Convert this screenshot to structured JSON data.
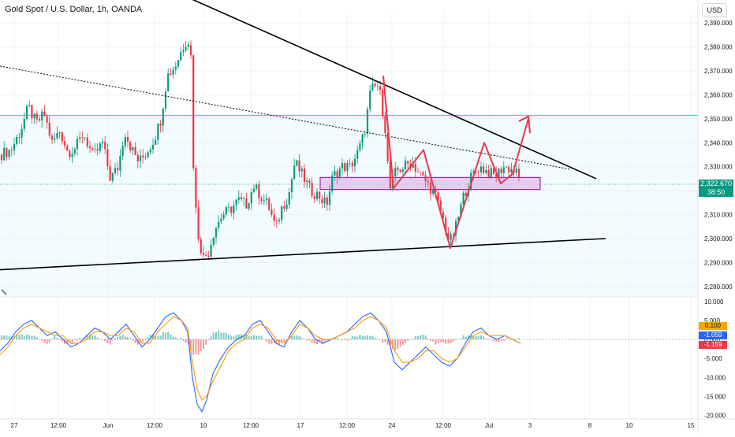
{
  "header": {
    "title": "Gold Spot / U.S. Dollar, 1h, OANDA",
    "currency": "USD"
  },
  "price_tag": {
    "price": "2,322.670",
    "countdown": "38:50",
    "color": "#089981"
  },
  "indicator_tags": [
    {
      "value": "0.100",
      "bg": "#f7a600",
      "fg": "#131722"
    },
    {
      "value": "-1.059",
      "bg": "#2962ff",
      "fg": "#ffffff"
    },
    {
      "value": "-1.159",
      "bg": "#f23645",
      "fg": "#ffffff"
    }
  ],
  "colors": {
    "up": "#089981",
    "down": "#f23645",
    "zone_fill": "#e1bee7",
    "zone_border": "#9c27b0",
    "pattern": "#e53950",
    "macd_line": "#2962ff",
    "signal_line": "#ff9800",
    "horizontal_line": "#26c6da"
  },
  "chart_data": [
    {
      "type": "candlestick",
      "title": "Gold Spot / U.S. Dollar, 1h, OANDA",
      "yaxis_ticks": [
        2280,
        2290,
        2300,
        2310,
        2320,
        2330,
        2340,
        2350,
        2360,
        2370,
        2380,
        2390
      ],
      "yaxis_tick_labels": [
        "2,280.000",
        "2,290.000",
        "2,300.000",
        "2,310.000",
        "2,320.000",
        "2,330.000",
        "2,340.000",
        "2,350.000",
        "2,360.000",
        "2,370.000",
        "2,380.000",
        "2,390.000"
      ],
      "ylim": [
        2276,
        2395
      ],
      "xaxis_labels": [
        "27",
        "12:00",
        "Jun",
        "12:00",
        "10",
        "12:00",
        "17",
        "12:00",
        "24",
        "12:00",
        "Jul",
        "3",
        "8",
        "10",
        "15"
      ],
      "grid": true,
      "last_price": 2322.67,
      "path_points": [
        [
          0,
          2335
        ],
        [
          14,
          2337
        ],
        [
          26,
          2345
        ],
        [
          36,
          2355
        ],
        [
          46,
          2348
        ],
        [
          56,
          2352
        ],
        [
          66,
          2340
        ],
        [
          76,
          2345
        ],
        [
          86,
          2336
        ],
        [
          96,
          2338
        ],
        [
          106,
          2344
        ],
        [
          118,
          2334
        ],
        [
          130,
          2340
        ],
        [
          140,
          2325
        ],
        [
          150,
          2330
        ],
        [
          158,
          2345
        ],
        [
          166,
          2338
        ],
        [
          176,
          2332
        ],
        [
          186,
          2336
        ],
        [
          196,
          2342
        ],
        [
          204,
          2350
        ],
        [
          212,
          2368
        ],
        [
          222,
          2372
        ],
        [
          232,
          2380
        ],
        [
          238,
          2384
        ],
        [
          242,
          2376
        ],
        [
          246,
          2320
        ],
        [
          252,
          2300
        ],
        [
          258,
          2292
        ],
        [
          264,
          2294
        ],
        [
          272,
          2304
        ],
        [
          282,
          2310
        ],
        [
          292,
          2312
        ],
        [
          302,
          2316
        ],
        [
          312,
          2314
        ],
        [
          322,
          2322
        ],
        [
          330,
          2318
        ],
        [
          340,
          2314
        ],
        [
          350,
          2304
        ],
        [
          356,
          2312
        ],
        [
          366,
          2318
        ],
        [
          374,
          2332
        ],
        [
          384,
          2326
        ],
        [
          394,
          2320
        ],
        [
          404,
          2318
        ],
        [
          414,
          2314
        ],
        [
          422,
          2326
        ],
        [
          434,
          2330
        ],
        [
          444,
          2330
        ],
        [
          454,
          2336
        ],
        [
          462,
          2344
        ],
        [
          470,
          2362
        ],
        [
          480,
          2364
        ],
        [
          488,
          2348
        ],
        [
          494,
          2320
        ],
        [
          502,
          2328
        ],
        [
          512,
          2330
        ],
        [
          522,
          2332
        ],
        [
          532,
          2327
        ],
        [
          542,
          2323
        ],
        [
          552,
          2318
        ],
        [
          562,
          2308
        ],
        [
          570,
          2298
        ],
        [
          578,
          2305
        ],
        [
          588,
          2318
        ],
        [
          598,
          2326
        ],
        [
          608,
          2330
        ],
        [
          618,
          2328
        ],
        [
          628,
          2326
        ],
        [
          638,
          2330
        ],
        [
          648,
          2329
        ],
        [
          656,
          2327
        ],
        [
          660,
          2323
        ]
      ],
      "horizontal_level": 2351.5,
      "zone": {
        "from": 2320.5,
        "to": 2325.5
      },
      "trendlines": [
        {
          "from": [
            236,
            2401
          ],
          "to": [
            756,
            2325
          ]
        },
        {
          "from": [
            0,
            2287
          ],
          "to": [
            768,
            2300
          ]
        },
        {
          "from": [
            0,
            2372
          ],
          "to": [
            722,
            2329
          ],
          "dotted": true
        }
      ],
      "pattern_path": [
        [
          486,
          2368
        ],
        [
          499,
          2321
        ],
        [
          537,
          2337
        ],
        [
          571,
          2296
        ],
        [
          614,
          2340
        ],
        [
          635,
          2323
        ],
        [
          650,
          2327
        ],
        [
          670,
          2350
        ]
      ],
      "arrowhead": [
        [
          658,
          2349
        ],
        [
          670,
          2351
        ],
        [
          672,
          2344
        ]
      ]
    },
    {
      "type": "line",
      "title": "",
      "yaxis_ticks": [
        10,
        5,
        0,
        -5,
        -10,
        -15,
        -20
      ],
      "yaxis_tick_labels": [
        "10.000",
        "5.000",
        "0.000",
        "-5.000",
        "-10.000",
        "-15.000",
        "-20.000"
      ],
      "ylim": [
        -20.5,
        11
      ],
      "series": [
        {
          "color": "#2962ff",
          "x": [
            0,
            10,
            20,
            30,
            40,
            50,
            60,
            70,
            80,
            90,
            100,
            110,
            120,
            130,
            140,
            150,
            160,
            170,
            180,
            190,
            200,
            210,
            220,
            230,
            238,
            244,
            250,
            256,
            262,
            270,
            280,
            290,
            300,
            310,
            320,
            330,
            340,
            350,
            360,
            370,
            380,
            390,
            400,
            410,
            420,
            430,
            440,
            450,
            460,
            470,
            480,
            490,
            500,
            510,
            520,
            530,
            540,
            550,
            560,
            570,
            580,
            590,
            600,
            610,
            620,
            630,
            640,
            650,
            660
          ],
          "y": [
            -3,
            -1,
            2,
            4,
            5,
            3,
            1,
            2,
            0,
            -2,
            -1,
            1,
            3,
            2,
            0,
            2,
            4,
            1,
            -2,
            0,
            3,
            6,
            7,
            5,
            2,
            -10,
            -17,
            -19,
            -16,
            -9,
            -5,
            -2,
            0,
            1,
            4,
            5,
            2,
            -1,
            -2,
            2,
            5,
            3,
            0,
            -1,
            0,
            1,
            2,
            4,
            6,
            7,
            5,
            2,
            -6,
            -8,
            -6,
            -4,
            -2,
            -4,
            -6,
            -7,
            -5,
            -1,
            2,
            3,
            1,
            0,
            1,
            0,
            -1
          ]
        },
        {
          "color": "#ff9800",
          "x": [
            0,
            10,
            20,
            30,
            40,
            50,
            60,
            70,
            80,
            90,
            100,
            110,
            120,
            130,
            140,
            150,
            160,
            170,
            180,
            190,
            200,
            210,
            220,
            230,
            238,
            244,
            250,
            256,
            262,
            270,
            280,
            290,
            300,
            310,
            320,
            330,
            340,
            350,
            360,
            370,
            380,
            390,
            400,
            410,
            420,
            430,
            440,
            450,
            460,
            470,
            480,
            490,
            500,
            510,
            520,
            530,
            540,
            550,
            560,
            570,
            580,
            590,
            600,
            610,
            620,
            630,
            640,
            650,
            660
          ],
          "y": [
            -4,
            -2,
            1,
            3,
            4,
            3,
            2,
            1,
            1,
            -1,
            -1,
            0,
            2,
            2,
            1,
            1,
            3,
            2,
            -1,
            -1,
            2,
            4,
            6,
            5,
            3,
            -6,
            -13,
            -16,
            -15,
            -11,
            -7,
            -3,
            -1,
            0,
            3,
            4,
            3,
            0,
            -1,
            1,
            4,
            3,
            1,
            0,
            0,
            1,
            2,
            3,
            5,
            6,
            5,
            3,
            -3,
            -6,
            -6,
            -5,
            -3,
            -3,
            -5,
            -6,
            -5,
            -2,
            1,
            2,
            1,
            1,
            1,
            0,
            -1
          ]
        }
      ],
      "histogram": {
        "x": [
          0,
          10,
          20,
          30,
          40,
          50,
          60,
          70,
          80,
          90,
          100,
          110,
          120,
          130,
          140,
          150,
          160,
          170,
          180,
          190,
          200,
          210,
          220,
          230,
          238,
          244,
          250,
          256,
          262,
          270,
          280,
          290,
          300,
          310,
          320,
          330,
          340,
          350,
          360,
          370,
          380,
          390,
          400,
          410,
          420,
          430,
          440,
          450,
          460,
          470,
          480,
          490,
          500,
          510,
          520,
          530,
          540,
          550,
          560,
          570,
          580,
          590,
          600,
          610,
          620,
          630,
          640,
          650,
          660
        ],
        "values": [
          1,
          1,
          1,
          1,
          1,
          0,
          -1,
          1,
          -1,
          -1,
          0,
          1,
          1,
          0,
          -1,
          1,
          1,
          -1,
          -1,
          1,
          1,
          2,
          1,
          0,
          -1,
          -4,
          -4,
          -3,
          -1,
          2,
          2,
          1,
          1,
          1,
          1,
          1,
          -1,
          -1,
          -1,
          1,
          1,
          0,
          -1,
          -1,
          0,
          0,
          0,
          1,
          1,
          1,
          0,
          -1,
          -3,
          -2,
          0,
          1,
          1,
          -1,
          -1,
          -1,
          0,
          1,
          1,
          1,
          0,
          -1,
          0,
          0,
          0
        ]
      }
    }
  ]
}
